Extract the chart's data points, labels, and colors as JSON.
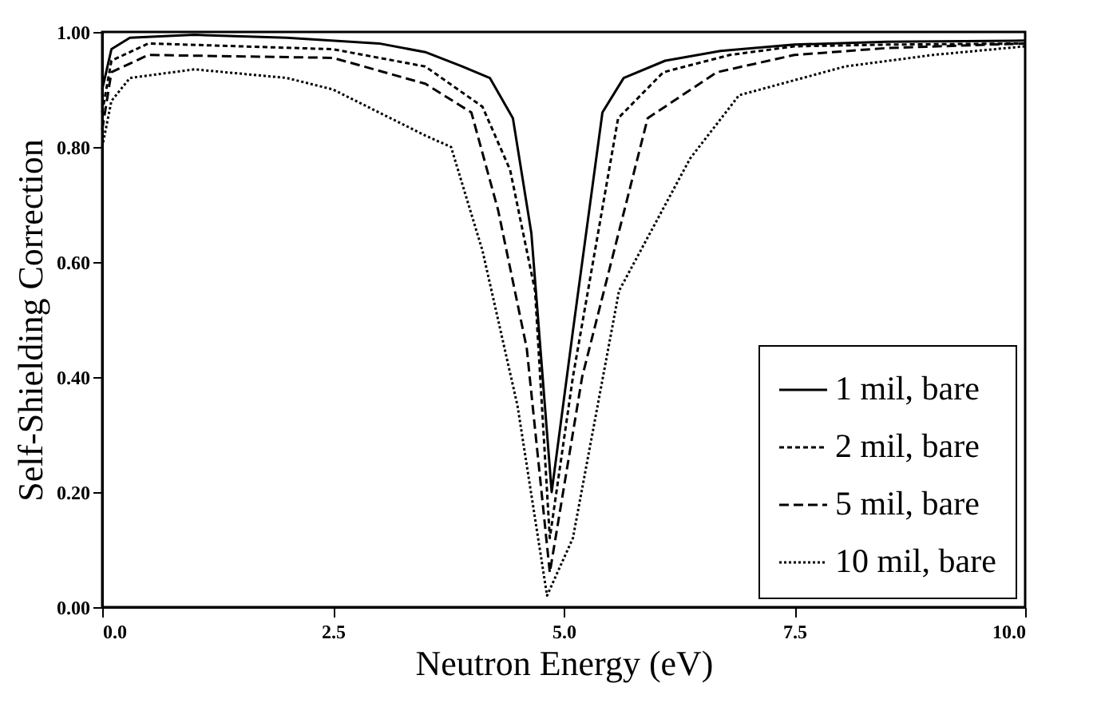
{
  "chart_data": {
    "type": "line",
    "xlabel": "Neutron Energy (eV)",
    "ylabel": "Self-Shielding Correction",
    "xlim": [
      0,
      10
    ],
    "ylim": [
      0,
      1
    ],
    "xticks": [
      {
        "value": 0,
        "label": "0.0"
      },
      {
        "value": 2.5,
        "label": "2.5"
      },
      {
        "value": 5,
        "label": "5.0"
      },
      {
        "value": 7.5,
        "label": "7.5"
      },
      {
        "value": 10,
        "label": "10.0"
      }
    ],
    "yticks": [
      {
        "value": 0,
        "label": "0.00"
      },
      {
        "value": 0.2,
        "label": "0.20"
      },
      {
        "value": 0.4,
        "label": "0.40"
      },
      {
        "value": 0.6,
        "label": "0.60"
      },
      {
        "value": 0.8,
        "label": "0.80"
      },
      {
        "value": 1,
        "label": "1.00"
      }
    ],
    "grid": false,
    "legend": "bottom right",
    "marker": "none",
    "series": [
      {
        "name": "1 mil, bare",
        "color": "#000000",
        "line_style": "solid",
        "x": [
          0,
          0.1,
          0.3,
          1,
          2,
          3,
          3.5,
          3.9,
          4.2,
          4.45,
          4.65,
          4.87,
          5.1,
          5.42,
          5.65,
          6.1,
          6.7,
          7.5,
          8.5,
          10
        ],
        "values": [
          0.9,
          0.97,
          0.99,
          0.995,
          0.99,
          0.98,
          0.965,
          0.94,
          0.92,
          0.85,
          0.65,
          0.2,
          0.48,
          0.86,
          0.92,
          0.95,
          0.967,
          0.978,
          0.983,
          0.985
        ]
      },
      {
        "name": "2 mil, bare",
        "color": "#000000",
        "line_style": "dashed",
        "x": [
          0,
          0.1,
          0.5,
          2.5,
          3.5,
          4.12,
          4.42,
          4.69,
          4.85,
          5.1,
          5.59,
          6.08,
          6.8,
          7.5,
          8.5,
          10
        ],
        "values": [
          0.86,
          0.95,
          0.98,
          0.97,
          0.94,
          0.87,
          0.76,
          0.55,
          0.12,
          0.4,
          0.85,
          0.93,
          0.96,
          0.975,
          0.978,
          0.98
        ]
      },
      {
        "name": "5 mil, bare",
        "color": "#000000",
        "line_style": "dashed",
        "x": [
          0,
          0.1,
          0.5,
          2.5,
          3.5,
          4,
          4.29,
          4.6,
          4.85,
          5.2,
          5.91,
          6.66,
          7.5,
          8.5,
          10
        ],
        "values": [
          0.83,
          0.93,
          0.96,
          0.955,
          0.91,
          0.86,
          0.69,
          0.45,
          0.06,
          0.4,
          0.85,
          0.93,
          0.96,
          0.972,
          0.98
        ]
      },
      {
        "name": "10 mil, bare",
        "color": "#000000",
        "line_style": "dotted",
        "x": [
          0,
          0.1,
          0.3,
          1,
          2,
          2.5,
          3.5,
          3.78,
          4.12,
          4.5,
          4.82,
          5.1,
          5.6,
          6.37,
          6.9,
          8.05,
          9,
          10
        ],
        "values": [
          0.8,
          0.88,
          0.92,
          0.935,
          0.92,
          0.9,
          0.82,
          0.8,
          0.62,
          0.35,
          0.02,
          0.12,
          0.55,
          0.78,
          0.89,
          0.94,
          0.96,
          0.975
        ]
      }
    ]
  }
}
